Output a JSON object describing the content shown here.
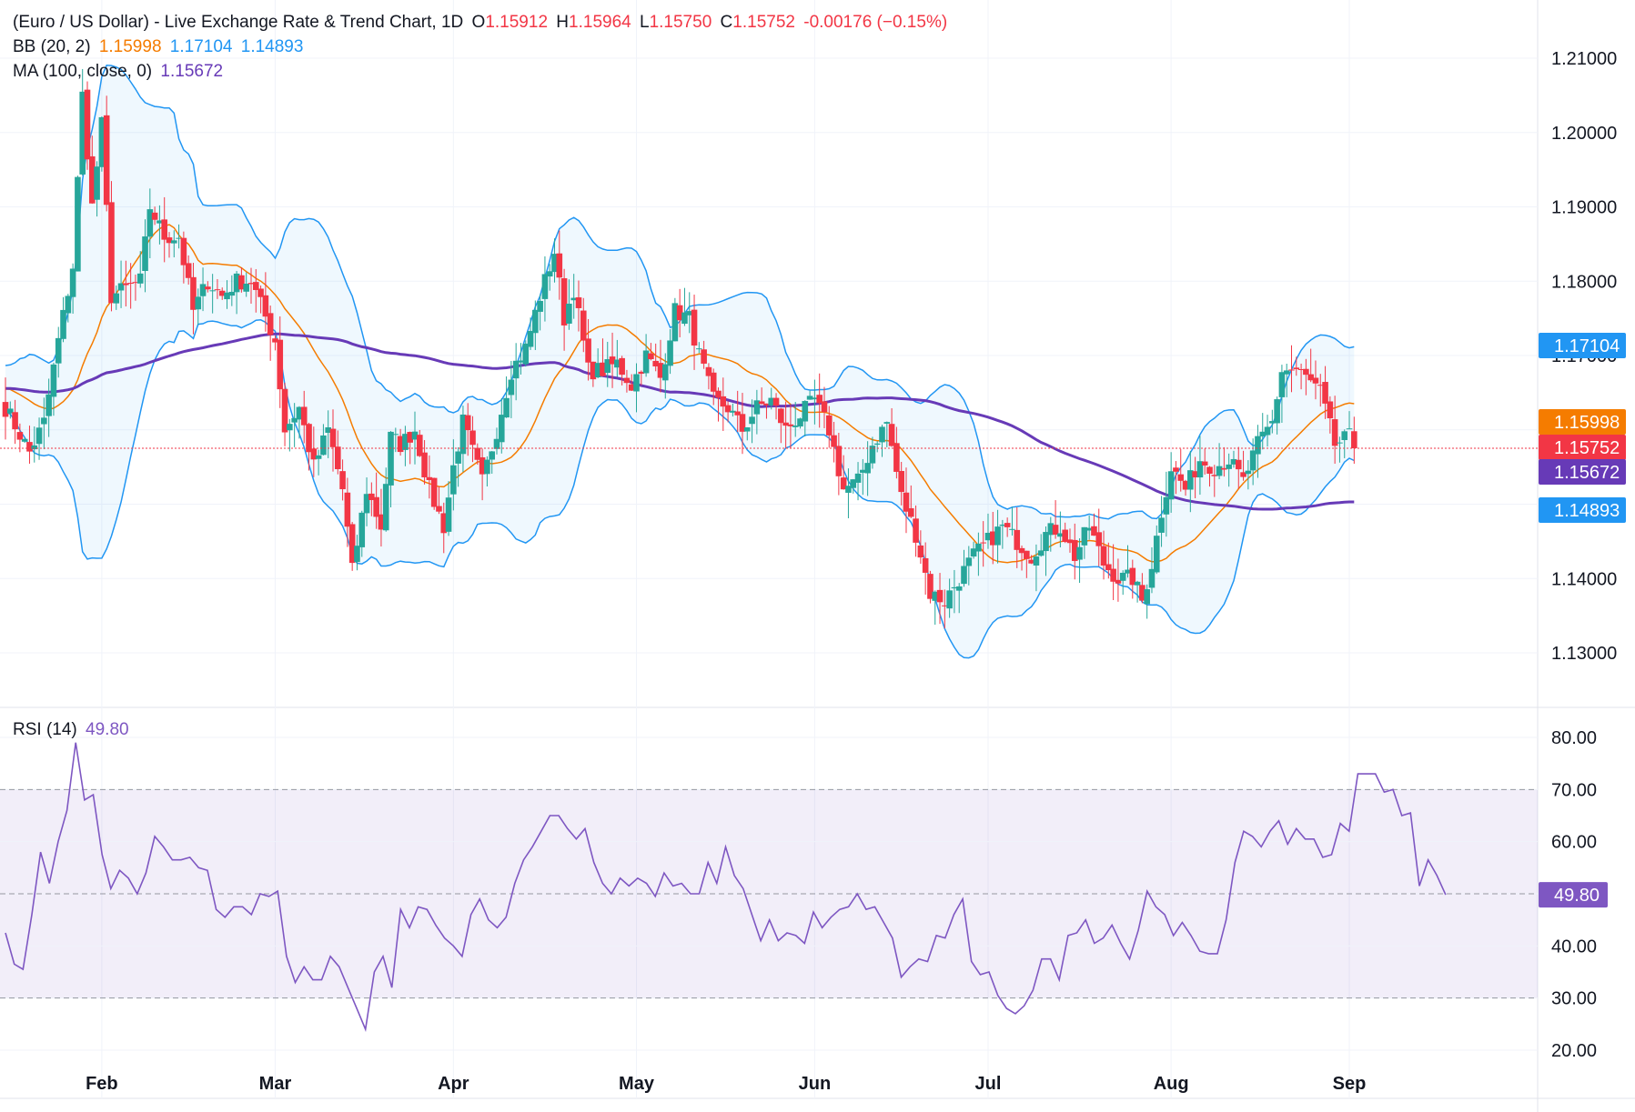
{
  "header": {
    "title": "(Euro / US Dollar) - Live Exchange Rate & Trend Chart, 1D",
    "open_label": "O",
    "open": "1.15912",
    "high_label": "H",
    "high": "1.15964",
    "low_label": "L",
    "low": "1.15750",
    "close_label": "C",
    "close": "1.15752",
    "change": "-0.00176 (−0.15%)"
  },
  "bb": {
    "label": "BB (20, 2)",
    "basis": "1.15998",
    "upper": "1.17104",
    "lower": "1.14893"
  },
  "ma": {
    "label": "MA (100, close, 0)",
    "value": "1.15672"
  },
  "rsi": {
    "label": "RSI (14)",
    "value": "49.80"
  },
  "colors": {
    "up": "#26a69a",
    "down": "#f23645",
    "bb_band": "#2196f3",
    "bb_basis": "#f57c00",
    "ma": "#673ab7",
    "rsi": "#7e57c2",
    "grid": "#f0f3fa",
    "axis_text": "#131722"
  },
  "chart_data": [
    {
      "type": "candlestick",
      "title": "(Euro / US Dollar) - Live Exchange Rate & Trend Chart, 1D",
      "y_ticks": [
        "1.21000",
        "1.20000",
        "1.19000",
        "1.18000",
        "1.17000",
        "1.16000",
        "1.15000",
        "1.14000",
        "1.13000"
      ],
      "ylim": [
        1.1235,
        1.2175
      ],
      "x_tick_labels": [
        "Feb",
        "Mar",
        "Apr",
        "May",
        "Jun",
        "Jul",
        "Aug",
        "Sep"
      ],
      "x_tick_index": [
        20,
        56,
        93,
        131,
        168,
        204,
        242,
        279
      ],
      "price_labels": [
        {
          "text": "1.17104",
          "value": 1.17104,
          "color": "#2196f3"
        },
        {
          "text": "1.15998",
          "value": 1.15998,
          "color": "#f57c00"
        },
        {
          "text": "1.15752",
          "value": 1.15752,
          "color": "#f23645"
        },
        {
          "text": "1.15672",
          "value": 1.15672,
          "color": "#673ab7"
        },
        {
          "text": "1.14893",
          "value": 1.14893,
          "color": "#2196f3"
        }
      ],
      "last_price": 1.15752,
      "series": {
        "close_anchors": [
          [
            0,
            1.163
          ],
          [
            5,
            1.157
          ],
          [
            8,
            1.161
          ],
          [
            11,
            1.172
          ],
          [
            14,
            1.182
          ],
          [
            16,
            1.205
          ],
          [
            18,
            1.19
          ],
          [
            20,
            1.201
          ],
          [
            22,
            1.178
          ],
          [
            25,
            1.179
          ],
          [
            28,
            1.18
          ],
          [
            30,
            1.19
          ],
          [
            33,
            1.186
          ],
          [
            36,
            1.186
          ],
          [
            39,
            1.176
          ],
          [
            42,
            1.18
          ],
          [
            45,
            1.178
          ],
          [
            48,
            1.18
          ],
          [
            51,
            1.18
          ],
          [
            56,
            1.172
          ],
          [
            58,
            1.16
          ],
          [
            61,
            1.163
          ],
          [
            64,
            1.155
          ],
          [
            67,
            1.16
          ],
          [
            70,
            1.152
          ],
          [
            72,
            1.141
          ],
          [
            75,
            1.152
          ],
          [
            78,
            1.147
          ],
          [
            80,
            1.159
          ],
          [
            82,
            1.158
          ],
          [
            85,
            1.16
          ],
          [
            88,
            1.152
          ],
          [
            91,
            1.147
          ],
          [
            93,
            1.155
          ],
          [
            95,
            1.161
          ],
          [
            97,
            1.157
          ],
          [
            99,
            1.153
          ],
          [
            102,
            1.16
          ],
          [
            105,
            1.168
          ],
          [
            108,
            1.171
          ],
          [
            111,
            1.178
          ],
          [
            114,
            1.184
          ],
          [
            116,
            1.175
          ],
          [
            118,
            1.179
          ],
          [
            121,
            1.168
          ],
          [
            124,
            1.168
          ],
          [
            127,
            1.169
          ],
          [
            130,
            1.166
          ],
          [
            133,
            1.17
          ],
          [
            136,
            1.167
          ],
          [
            139,
            1.176
          ],
          [
            142,
            1.175
          ],
          [
            144,
            1.17
          ],
          [
            147,
            1.164
          ],
          [
            150,
            1.163
          ],
          [
            153,
            1.16
          ],
          [
            156,
            1.163
          ],
          [
            159,
            1.164
          ],
          [
            162,
            1.16
          ],
          [
            165,
            1.162
          ],
          [
            168,
            1.164
          ],
          [
            171,
            1.16
          ],
          [
            174,
            1.152
          ],
          [
            177,
            1.153
          ],
          [
            180,
            1.158
          ],
          [
            183,
            1.161
          ],
          [
            186,
            1.151
          ],
          [
            189,
            1.146
          ],
          [
            192,
            1.138
          ],
          [
            195,
            1.137
          ],
          [
            198,
            1.14
          ],
          [
            201,
            1.143
          ],
          [
            204,
            1.145
          ],
          [
            207,
            1.147
          ],
          [
            210,
            1.145
          ],
          [
            213,
            1.143
          ],
          [
            216,
            1.146
          ],
          [
            219,
            1.147
          ],
          [
            222,
            1.143
          ],
          [
            225,
            1.147
          ],
          [
            228,
            1.142
          ],
          [
            231,
            1.14
          ],
          [
            234,
            1.14
          ],
          [
            236,
            1.137
          ],
          [
            238,
            1.142
          ],
          [
            240,
            1.149
          ],
          [
            242,
            1.155
          ],
          [
            245,
            1.152
          ],
          [
            248,
            1.156
          ],
          [
            251,
            1.155
          ],
          [
            254,
            1.156
          ],
          [
            257,
            1.153
          ],
          [
            260,
            1.158
          ],
          [
            263,
            1.161
          ],
          [
            265,
            1.168
          ],
          [
            268,
            1.168
          ],
          [
            270,
            1.167
          ],
          [
            273,
            1.165
          ],
          [
            276,
            1.158
          ],
          [
            279,
            1.159
          ],
          [
            280,
            1.1575
          ]
        ]
      }
    },
    {
      "type": "line",
      "title": "RSI (14)",
      "y_ticks": [
        "80.00",
        "70.00",
        "60.00",
        "50.00",
        "40.00",
        "30.00",
        "20.00"
      ],
      "ylim": [
        18,
        82
      ],
      "band": [
        30,
        70
      ],
      "mid": 50,
      "series": [
        {
          "name": "RSI (14)",
          "value_label": "49.80",
          "last": 49.8,
          "points": [
            [
              0,
              42.5
            ],
            [
              2,
              36.5
            ],
            [
              4,
              35.5
            ],
            [
              6,
              46
            ],
            [
              8,
              58
            ],
            [
              10,
              52
            ],
            [
              12,
              60
            ],
            [
              14,
              66
            ],
            [
              16,
              79
            ],
            [
              18,
              68
            ],
            [
              20,
              69
            ],
            [
              22,
              57.5
            ],
            [
              24,
              51
            ],
            [
              26,
              54.5
            ],
            [
              28,
              53
            ],
            [
              30,
              50
            ],
            [
              32,
              54
            ],
            [
              34,
              61
            ],
            [
              36,
              59
            ],
            [
              38,
              56.5
            ],
            [
              40,
              56.5
            ],
            [
              42,
              57
            ],
            [
              44,
              55
            ],
            [
              46,
              54.5
            ],
            [
              48,
              47
            ],
            [
              50,
              45.5
            ],
            [
              52,
              47.5
            ],
            [
              54,
              47.5
            ],
            [
              56,
              46
            ],
            [
              58,
              50
            ],
            [
              60,
              49.5
            ],
            [
              62,
              50.5
            ],
            [
              64,
              38
            ],
            [
              66,
              33
            ],
            [
              68,
              36
            ],
            [
              70,
              33.5
            ],
            [
              72,
              33.5
            ],
            [
              74,
              38
            ],
            [
              76,
              36
            ],
            [
              78,
              32
            ],
            [
              80,
              28
            ],
            [
              82,
              24
            ],
            [
              84,
              35
            ],
            [
              86,
              38
            ],
            [
              88,
              32
            ],
            [
              90,
              47
            ],
            [
              92,
              43.5
            ],
            [
              94,
              47.5
            ],
            [
              96,
              47
            ],
            [
              98,
              44
            ],
            [
              100,
              41.5
            ],
            [
              102,
              40
            ],
            [
              104,
              38
            ],
            [
              106,
              46
            ],
            [
              108,
              49
            ],
            [
              110,
              45
            ],
            [
              112,
              43.5
            ],
            [
              114,
              45.5
            ],
            [
              116,
              52
            ],
            [
              118,
              56.5
            ],
            [
              120,
              59
            ],
            [
              122,
              62
            ],
            [
              124,
              65
            ],
            [
              126,
              65
            ],
            [
              128,
              62.5
            ],
            [
              130,
              60.5
            ],
            [
              132,
              62.5
            ],
            [
              134,
              56
            ],
            [
              136,
              52
            ],
            [
              138,
              50
            ],
            [
              140,
              53
            ],
            [
              142,
              51.5
            ],
            [
              144,
              53
            ],
            [
              146,
              52
            ],
            [
              148,
              49.5
            ],
            [
              150,
              54
            ],
            [
              152,
              51.5
            ],
            [
              154,
              52
            ],
            [
              156,
              50
            ],
            [
              158,
              50
            ],
            [
              160,
              56
            ],
            [
              162,
              52
            ],
            [
              164,
              59
            ],
            [
              166,
              53.5
            ],
            [
              168,
              51
            ],
            [
              170,
              46
            ],
            [
              172,
              41
            ],
            [
              174,
              45
            ],
            [
              176,
              41
            ],
            [
              178,
              42.5
            ],
            [
              180,
              42
            ],
            [
              182,
              40.5
            ],
            [
              184,
              46.5
            ],
            [
              186,
              43.5
            ],
            [
              188,
              45.5
            ],
            [
              190,
              47
            ],
            [
              192,
              47.5
            ],
            [
              194,
              50
            ],
            [
              196,
              47
            ],
            [
              198,
              47.5
            ],
            [
              200,
              44.5
            ],
            [
              202,
              41.5
            ],
            [
              204,
              34
            ],
            [
              206,
              36
            ],
            [
              208,
              37.5
            ],
            [
              210,
              37
            ],
            [
              212,
              42
            ],
            [
              214,
              41.5
            ],
            [
              216,
              46
            ],
            [
              218,
              49
            ],
            [
              220,
              37
            ],
            [
              222,
              34.5
            ],
            [
              224,
              35
            ],
            [
              226,
              30.5
            ],
            [
              228,
              28
            ],
            [
              230,
              27
            ],
            [
              232,
              28.5
            ],
            [
              234,
              31.5
            ],
            [
              236,
              37.5
            ],
            [
              238,
              37.5
            ],
            [
              240,
              33.5
            ],
            [
              242,
              42
            ],
            [
              244,
              42.5
            ],
            [
              246,
              45
            ],
            [
              248,
              40.5
            ],
            [
              250,
              41.5
            ],
            [
              252,
              44
            ],
            [
              254,
              40.5
            ],
            [
              256,
              37.5
            ],
            [
              258,
              43
            ],
            [
              260,
              50.5
            ],
            [
              262,
              47.5
            ],
            [
              264,
              46
            ],
            [
              266,
              42
            ],
            [
              268,
              44.5
            ],
            [
              270,
              42
            ],
            [
              272,
              39
            ],
            [
              274,
              38.5
            ],
            [
              276,
              38.5
            ],
            [
              278,
              45
            ],
            [
              280,
              56
            ],
            [
              282,
              62
            ],
            [
              284,
              61
            ],
            [
              286,
              59
            ],
            [
              288,
              62
            ],
            [
              290,
              64
            ],
            [
              292,
              59.5
            ],
            [
              294,
              62.5
            ],
            [
              296,
              60.5
            ],
            [
              298,
              60.5
            ],
            [
              300,
              57
            ],
            [
              302,
              57.5
            ],
            [
              304,
              63.5
            ],
            [
              306,
              62
            ],
            [
              308,
              73
            ],
            [
              310,
              73
            ],
            [
              312,
              73
            ],
            [
              314,
              69.5
            ],
            [
              316,
              70
            ],
            [
              318,
              65
            ],
            [
              320,
              65.5
            ],
            [
              322,
              51.5
            ],
            [
              324,
              56.5
            ],
            [
              326,
              53.5
            ],
            [
              328,
              49.8
            ]
          ]
        }
      ]
    }
  ]
}
